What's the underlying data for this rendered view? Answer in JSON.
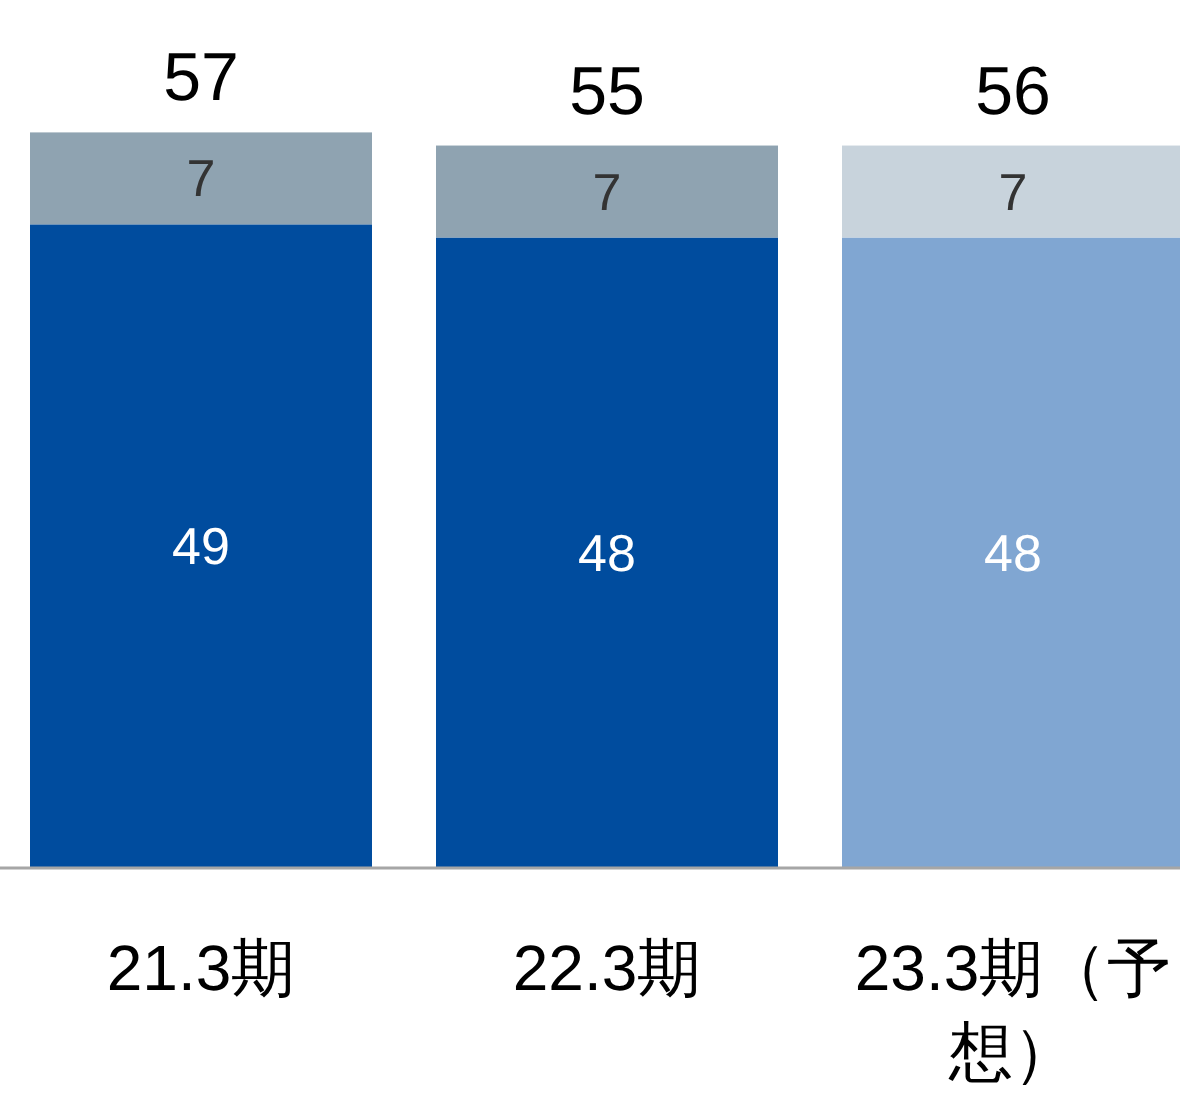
{
  "chart_data": {
    "type": "bar",
    "stacked": true,
    "categories": [
      "21.3期",
      "22.3期",
      "23.3期（予想）"
    ],
    "series": [
      {
        "values": [
          49,
          48,
          48
        ],
        "colors": [
          "#004c9e",
          "#004c9e",
          "#80a6d2"
        ]
      },
      {
        "values": [
          7,
          7,
          7
        ],
        "colors": [
          "#8fa3b1",
          "#8fa3b1",
          "#c8d3dc"
        ]
      }
    ],
    "totals": [
      "57",
      "55",
      "56"
    ],
    "data_labels": true,
    "tick_labels": "x"
  }
}
